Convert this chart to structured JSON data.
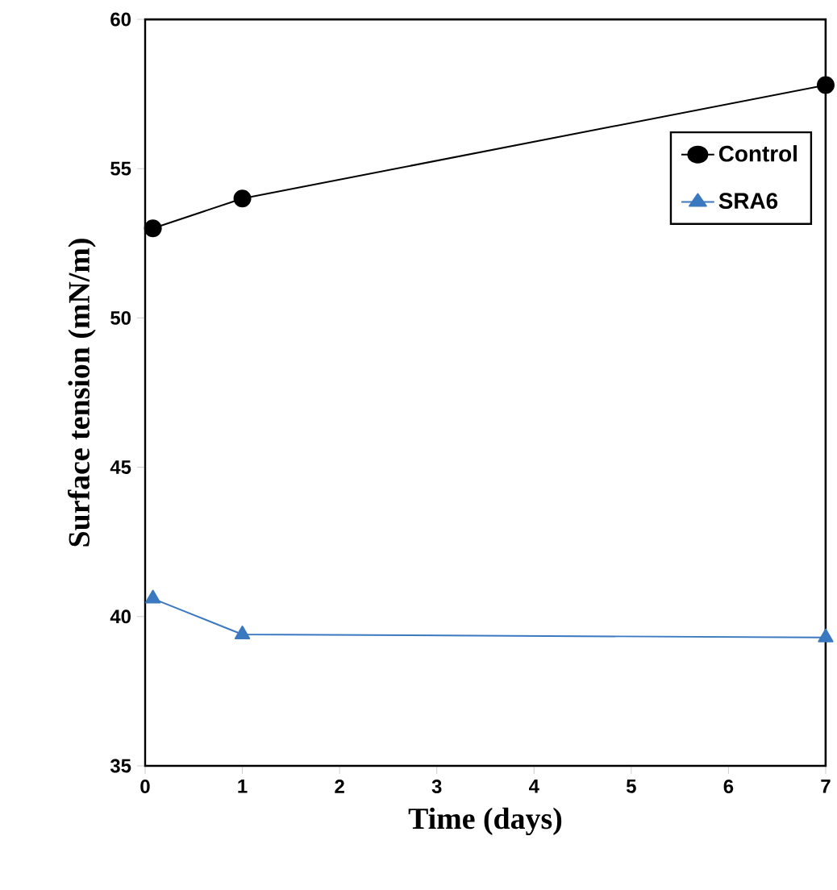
{
  "chart_data": {
    "type": "line",
    "xlabel": "Time (days)",
    "ylabel": "Surface tension (mN/m)",
    "x": [
      0.08,
      1,
      7
    ],
    "series": [
      {
        "name": "Control",
        "color": "#000000",
        "marker": "circle",
        "values": [
          53,
          54,
          57.8
        ]
      },
      {
        "name": "SRA6",
        "color": "#3a78c0",
        "marker": "triangle",
        "values": [
          40.6,
          39.4,
          39.3
        ]
      }
    ],
    "xlim": [
      0,
      7
    ],
    "ylim": [
      35,
      60
    ],
    "xticks": [
      0,
      1,
      2,
      3,
      4,
      5,
      6,
      7
    ],
    "yticks": [
      35,
      40,
      45,
      50,
      55,
      60
    ],
    "grid": false,
    "legend": "top right"
  }
}
